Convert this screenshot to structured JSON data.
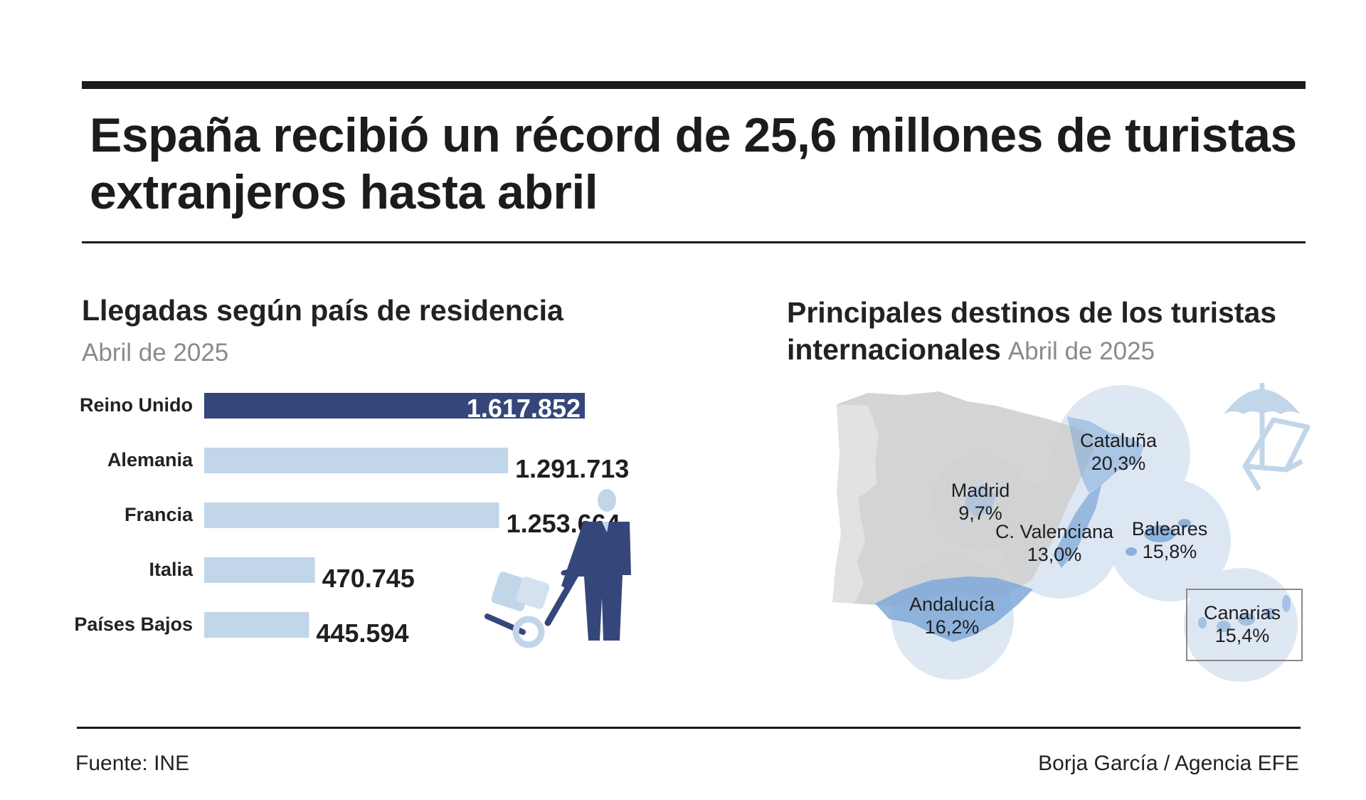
{
  "title": "España recibió un récord de 25,6 millones de turistas extranjeros hasta abril",
  "left_panel": {
    "title": "Llegadas según país de residencia",
    "date": "Abril de 2025"
  },
  "right_panel": {
    "title_line1": "Principales destinos de los turistas",
    "title_line2": "internacionales",
    "date": "Abril de 2025"
  },
  "chart_data": [
    {
      "type": "bar",
      "orientation": "horizontal",
      "title": "Llegadas según país de residencia",
      "subtitle": "Abril de 2025",
      "categories": [
        "Reino Unido",
        "Alemania",
        "Francia",
        "Italia",
        "Países Bajos"
      ],
      "values": [
        1617852,
        1291713,
        1253664,
        470745,
        445594
      ],
      "value_labels": [
        "1.617.852",
        "1.291.713",
        "1.253.664",
        "470.745",
        "445.594"
      ],
      "colors": [
        "#35467a",
        "#c2d6ea",
        "#c2d6ea",
        "#c2d6ea",
        "#c2d6ea"
      ]
    },
    {
      "type": "map",
      "title": "Principales destinos de los turistas internacionales",
      "subtitle": "Abril de 2025",
      "regions": [
        {
          "name": "Cataluña",
          "value_label": "20,3%",
          "value": 20.3
        },
        {
          "name": "Andalucía",
          "value_label": "16,2%",
          "value": 16.2
        },
        {
          "name": "Baleares",
          "value_label": "15,8%",
          "value": 15.8
        },
        {
          "name": "Canarias",
          "value_label": "15,4%",
          "value": 15.4
        },
        {
          "name": "C. Valenciana",
          "value_label": "13,0%",
          "value": 13.0
        },
        {
          "name": "Madrid",
          "value_label": "9,7%",
          "value": 9.7
        }
      ],
      "colors": {
        "land": "#cfcfcf",
        "highlight": "#7fa9d8",
        "bubble": "#dbe6f2"
      }
    }
  ],
  "footer": {
    "source": "Fuente: INE",
    "credit": "Borja García / Agencia EFE"
  },
  "icons": [
    "traveler-with-luggage-icon",
    "beach-umbrella-deckchair-icon"
  ]
}
